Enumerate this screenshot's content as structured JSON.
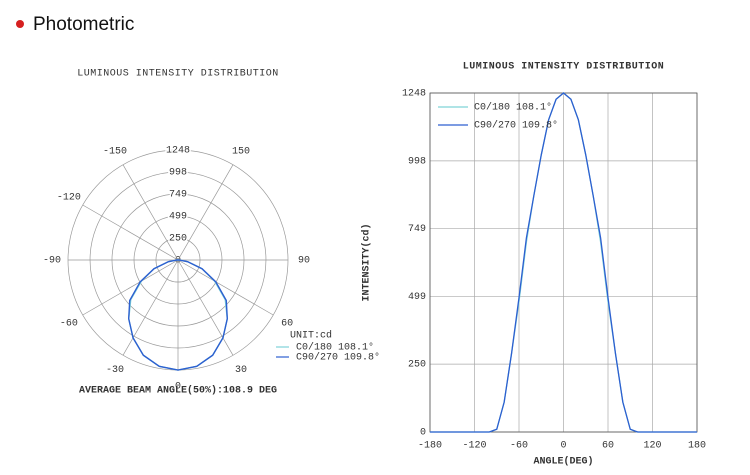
{
  "header": {
    "title": "Photometric"
  },
  "chart_data": [
    {
      "type": "polar",
      "title": "LUMINOUS INTENSITY DISTRIBUTION",
      "x": [
        -180,
        -170,
        -160,
        -150,
        -140,
        -130,
        -120,
        -110,
        -100,
        -90,
        -80,
        -70,
        -60,
        -50,
        -40,
        -30,
        -20,
        -10,
        0,
        10,
        20,
        30,
        40,
        50,
        60,
        70,
        80,
        90,
        100,
        110,
        120,
        130,
        140,
        150,
        160,
        170,
        180
      ],
      "series": [
        {
          "name": "C0/180 108.1°",
          "color": "#7fd3d8",
          "values": [
            0,
            0,
            0,
            0,
            0,
            0,
            0,
            0,
            0,
            10,
            110,
            290,
            480,
            700,
            870,
            1020,
            1150,
            1225,
            1248,
            1225,
            1150,
            1020,
            870,
            700,
            480,
            290,
            110,
            10,
            0,
            0,
            0,
            0,
            0,
            0,
            0,
            0,
            0
          ]
        },
        {
          "name": "C90/270 109.8°",
          "color": "#2d5fd0",
          "values": [
            0,
            0,
            0,
            0,
            0,
            0,
            0,
            0,
            0,
            10,
            110,
            290,
            495,
            715,
            870,
            1020,
            1150,
            1225,
            1248,
            1225,
            1150,
            1020,
            870,
            715,
            495,
            290,
            110,
            10,
            0,
            0,
            0,
            0,
            0,
            0,
            0,
            0,
            0
          ]
        }
      ],
      "rlim": [
        0,
        1248
      ],
      "rticks": [
        0,
        250,
        499,
        749,
        998,
        1248
      ],
      "angle_ticks": [
        -150,
        150,
        -120,
        -90,
        90,
        -60,
        60,
        -30,
        30,
        0
      ],
      "unit": "UNIT:cd",
      "legend": "lower right",
      "annotation": "AVERAGE BEAM ANGLE(50%):108.9 DEG"
    },
    {
      "type": "line",
      "title": "LUMINOUS INTENSITY DISTRIBUTION",
      "x": [
        -180,
        -170,
        -160,
        -150,
        -140,
        -130,
        -120,
        -110,
        -100,
        -90,
        -80,
        -70,
        -60,
        -50,
        -40,
        -30,
        -20,
        -10,
        0,
        10,
        20,
        30,
        40,
        50,
        60,
        70,
        80,
        90,
        100,
        110,
        120,
        130,
        140,
        150,
        160,
        170,
        180
      ],
      "series": [
        {
          "name": "C0/180 108.1°",
          "color": "#7fd3d8",
          "values": [
            0,
            0,
            0,
            0,
            0,
            0,
            0,
            0,
            0,
            10,
            110,
            290,
            480,
            700,
            870,
            1020,
            1150,
            1225,
            1248,
            1225,
            1150,
            1020,
            870,
            700,
            480,
            290,
            110,
            10,
            0,
            0,
            0,
            0,
            0,
            0,
            0,
            0,
            0
          ]
        },
        {
          "name": "C90/270 109.8°",
          "color": "#2d5fd0",
          "values": [
            0,
            0,
            0,
            0,
            0,
            0,
            0,
            0,
            0,
            10,
            110,
            290,
            495,
            715,
            870,
            1020,
            1150,
            1225,
            1248,
            1225,
            1150,
            1020,
            870,
            715,
            495,
            290,
            110,
            10,
            0,
            0,
            0,
            0,
            0,
            0,
            0,
            0,
            0
          ]
        }
      ],
      "xlim": [
        -180,
        180
      ],
      "xticks": [
        -180,
        -120,
        -60,
        0,
        60,
        120,
        180
      ],
      "ylim": [
        0,
        1248
      ],
      "yticks": [
        0,
        250,
        499,
        749,
        998,
        1248
      ],
      "xlabel": "ANGLE(DEG)",
      "ylabel": "INTENSITY(cd)",
      "grid": true,
      "legend": "upper left"
    }
  ]
}
